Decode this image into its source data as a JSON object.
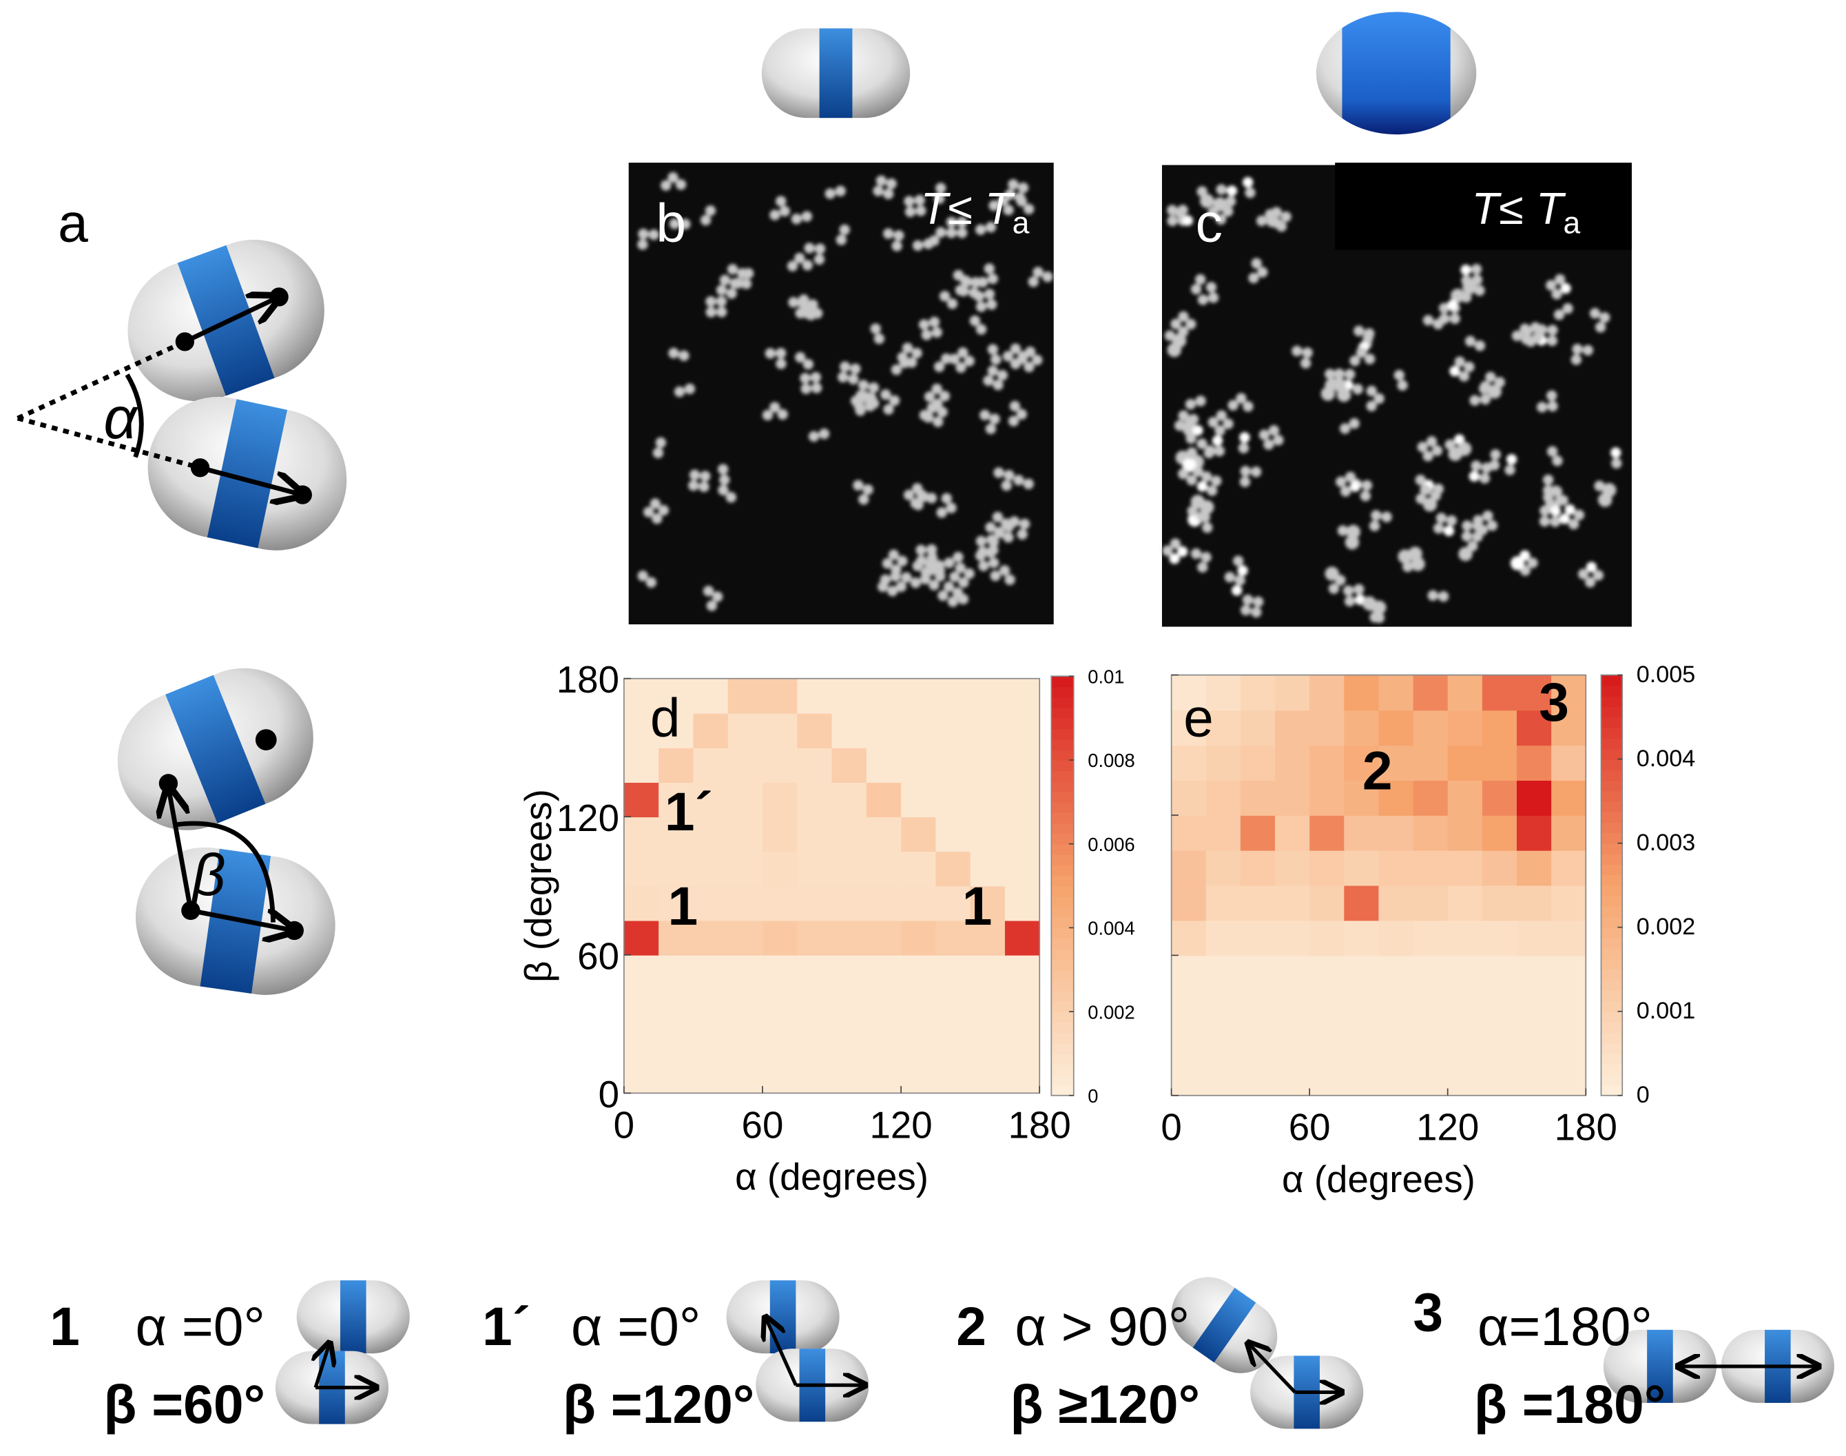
{
  "panel_a": {
    "label": "a",
    "alpha_symbol": "α",
    "beta_symbol": "β"
  },
  "panel_b": {
    "label": "b",
    "temperature_label": {
      "main": "T≤ T",
      "sub": "a"
    }
  },
  "panel_c": {
    "label": "c",
    "temperature_label": {
      "main": "T≤ T",
      "sub": "a"
    }
  },
  "chart_data": [
    {
      "type": "heatmap",
      "panel_label": "d",
      "x_label": "α (degrees)",
      "y_label": "β (degrees)",
      "xlim": [
        0,
        180
      ],
      "xticks": [
        0,
        60,
        120,
        180
      ],
      "ylim": [
        0,
        180
      ],
      "yticks": [
        0,
        60,
        120,
        180
      ],
      "xbins": [
        0,
        15,
        30,
        45,
        60,
        75,
        90,
        105,
        120,
        135,
        150,
        165,
        180
      ],
      "ybins": [
        0,
        15,
        30,
        45,
        60,
        75,
        90,
        105,
        120,
        135,
        150,
        165,
        180
      ],
      "clim": [
        0,
        0.01
      ],
      "cticks": [
        0,
        0.002,
        0.004,
        0.006,
        0.008,
        0.01
      ],
      "colormap": [
        "#fdefdc",
        "#f6a36c",
        "#d7191c"
      ],
      "annotations": [
        "1´",
        "1",
        "1"
      ],
      "values": [
        [
          0.0003,
          0.0003,
          0.0003,
          0.0003,
          0.0003,
          0.0003,
          0.0003,
          0.0003,
          0.0003,
          0.0003,
          0.0003,
          0.0003
        ],
        [
          0.0003,
          0.0003,
          0.0003,
          0.0003,
          0.0003,
          0.0003,
          0.0003,
          0.0003,
          0.0003,
          0.0003,
          0.0003,
          0.0003
        ],
        [
          0.0003,
          0.0003,
          0.0003,
          0.0003,
          0.0003,
          0.0003,
          0.0003,
          0.0003,
          0.0003,
          0.0003,
          0.0003,
          0.0003
        ],
        [
          0.0003,
          0.0003,
          0.0003,
          0.0003,
          0.0003,
          0.0003,
          0.0003,
          0.0003,
          0.0003,
          0.0003,
          0.0003,
          0.0003
        ],
        [
          0.009,
          0.0022,
          0.0022,
          0.0022,
          0.0025,
          0.0022,
          0.0022,
          0.0022,
          0.0025,
          0.0022,
          0.0022,
          0.009
        ],
        [
          0.0012,
          0.0011,
          0.0011,
          0.0011,
          0.0011,
          0.0011,
          0.0011,
          0.0011,
          0.0011,
          0.0011,
          0.0022,
          0.0005
        ],
        [
          0.001,
          0.001,
          0.001,
          0.001,
          0.0012,
          0.001,
          0.001,
          0.001,
          0.001,
          0.0022,
          0.0005,
          0.0005
        ],
        [
          0.001,
          0.001,
          0.001,
          0.001,
          0.0015,
          0.001,
          0.001,
          0.001,
          0.0022,
          0.0005,
          0.0005,
          0.0005
        ],
        [
          0.008,
          0.001,
          0.001,
          0.001,
          0.0015,
          0.001,
          0.001,
          0.0025,
          0.0005,
          0.0005,
          0.0005,
          0.0005
        ],
        [
          0.0005,
          0.0022,
          0.001,
          0.001,
          0.001,
          0.001,
          0.0022,
          0.0005,
          0.0005,
          0.0005,
          0.0005,
          0.0005
        ],
        [
          0.0005,
          0.0005,
          0.0022,
          0.001,
          0.001,
          0.0022,
          0.0005,
          0.0005,
          0.0005,
          0.0005,
          0.0005,
          0.0005
        ],
        [
          0.0005,
          0.0005,
          0.0005,
          0.0022,
          0.0022,
          0.0005,
          0.0005,
          0.0005,
          0.0005,
          0.0005,
          0.0005,
          0.0005
        ]
      ]
    },
    {
      "type": "heatmap",
      "panel_label": "e",
      "x_label": "α (degrees)",
      "xlim": [
        0,
        180
      ],
      "xticks": [
        0,
        60,
        120,
        180
      ],
      "ylim": [
        0,
        180
      ],
      "yticks": [
        0,
        60,
        120,
        180
      ],
      "xbins": [
        0,
        15,
        30,
        45,
        60,
        75,
        90,
        105,
        120,
        135,
        150,
        165,
        180
      ],
      "ybins": [
        0,
        15,
        30,
        45,
        60,
        75,
        90,
        105,
        120,
        135,
        150,
        165,
        180
      ],
      "clim": [
        0,
        0.005
      ],
      "cticks": [
        0,
        0.001,
        0.002,
        0.003,
        0.004,
        0.005
      ],
      "colormap": [
        "#fdefdc",
        "#f6a36c",
        "#d7191c"
      ],
      "annotations": [
        "2",
        "3"
      ],
      "values": [
        [
          0.0002,
          0.0002,
          0.0002,
          0.0002,
          0.0002,
          0.0002,
          0.0002,
          0.0002,
          0.0002,
          0.0002,
          0.0002,
          0.0002
        ],
        [
          0.0002,
          0.0002,
          0.0002,
          0.0002,
          0.0002,
          0.0002,
          0.0002,
          0.0002,
          0.0002,
          0.0002,
          0.0002,
          0.0002
        ],
        [
          0.0002,
          0.0002,
          0.0002,
          0.0002,
          0.0002,
          0.0002,
          0.0002,
          0.0002,
          0.0002,
          0.0002,
          0.0002,
          0.0002
        ],
        [
          0.0002,
          0.0002,
          0.0002,
          0.0002,
          0.0002,
          0.0002,
          0.0002,
          0.0002,
          0.0002,
          0.0002,
          0.0002,
          0.0002
        ],
        [
          0.0008,
          0.0005,
          0.0005,
          0.0005,
          0.0006,
          0.0005,
          0.0006,
          0.0005,
          0.0005,
          0.0005,
          0.0006,
          0.0006
        ],
        [
          0.0015,
          0.0008,
          0.0008,
          0.0008,
          0.001,
          0.0035,
          0.001,
          0.001,
          0.0008,
          0.001,
          0.001,
          0.0008
        ],
        [
          0.0015,
          0.001,
          0.0012,
          0.001,
          0.0012,
          0.001,
          0.0012,
          0.0012,
          0.0012,
          0.0015,
          0.002,
          0.0012
        ],
        [
          0.0012,
          0.0012,
          0.003,
          0.0012,
          0.003,
          0.0015,
          0.0015,
          0.0018,
          0.002,
          0.0025,
          0.0045,
          0.002
        ],
        [
          0.001,
          0.0012,
          0.0015,
          0.0015,
          0.0018,
          0.002,
          0.0025,
          0.0028,
          0.002,
          0.003,
          0.005,
          0.0025
        ],
        [
          0.0008,
          0.001,
          0.0012,
          0.0015,
          0.0018,
          0.0022,
          0.002,
          0.002,
          0.0025,
          0.0025,
          0.003,
          0.0015
        ],
        [
          0.0005,
          0.0008,
          0.001,
          0.0015,
          0.0015,
          0.002,
          0.0025,
          0.002,
          0.0022,
          0.0025,
          0.004,
          0.002
        ],
        [
          0.0003,
          0.0005,
          0.0008,
          0.001,
          0.0015,
          0.0025,
          0.002,
          0.003,
          0.002,
          0.0035,
          0.0035,
          0.002
        ]
      ]
    }
  ],
  "configurations": [
    {
      "label": "1",
      "alpha": "α =0°",
      "beta": "β =60°"
    },
    {
      "label": "1´",
      "alpha": "α =0°",
      "beta": "β =120°"
    },
    {
      "label": "2",
      "alpha": "α > 90°",
      "beta": "β ≥120°"
    },
    {
      "label": "3",
      "alpha": "α=180°",
      "beta": "β =180°"
    }
  ]
}
